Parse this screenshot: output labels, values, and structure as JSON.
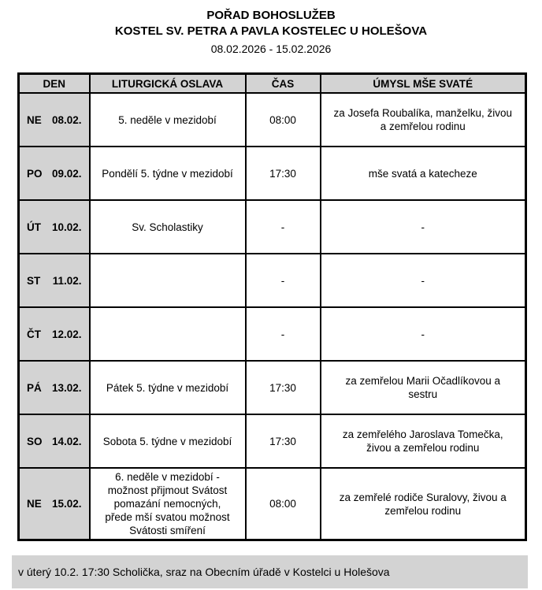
{
  "header": {
    "title": "POŘAD BOHOSLUŽEB",
    "subtitle": "KOSTEL SV. PETRA A PAVLA KOSTELEC U HOLEŠOVA",
    "date_range": "08.02.2026 - 15.02.2026"
  },
  "table": {
    "columns": [
      "DEN",
      "LITURGICKÁ OSLAVA",
      "ČAS",
      "ÚMYSL MŠE SVATÉ"
    ],
    "rows": [
      {
        "day": "NE",
        "date": "08.02.",
        "celebration": "5. neděle v mezidobí",
        "time": "08:00",
        "intention": "za Josefa Roubalíka, manželku, živou a zemřelou rodinu"
      },
      {
        "day": "PO",
        "date": "09.02.",
        "celebration": "Pondělí 5. týdne v mezidobí",
        "time": "17:30",
        "intention": "mše svatá a katecheze"
      },
      {
        "day": "ÚT",
        "date": "10.02.",
        "celebration": "Sv. Scholastiky",
        "time": "-",
        "intention": "-"
      },
      {
        "day": "ST",
        "date": "11.02.",
        "celebration": "",
        "time": "-",
        "intention": "-"
      },
      {
        "day": "ČT",
        "date": "12.02.",
        "celebration": "",
        "time": "-",
        "intention": "-"
      },
      {
        "day": "PÁ",
        "date": "13.02.",
        "celebration": "Pátek 5. týdne v mezidobí",
        "time": "17:30",
        "intention": "za zemřelou Marii Očadlíkovou a sestru"
      },
      {
        "day": "SO",
        "date": "14.02.",
        "celebration": "Sobota 5. týdne v mezidobí",
        "time": "17:30",
        "intention": "za zemřelého Jaroslava Tomečka, živou a zemřelou rodinu"
      },
      {
        "day": "NE",
        "date": "15.02.",
        "celebration": "6. neděle v mezidobí - možnost přijmout Svátost pomazání nemocných, přede mší svatou možnost Svátosti smíření",
        "time": "08:00",
        "intention": "za zemřelé rodiče Suralovy, živou a zemřelou rodinu"
      }
    ]
  },
  "footer": {
    "note": "v úterý 10.2. 17:30 Scholička, sraz na Obecním úřadě v Kostelci u Holešova"
  },
  "colors": {
    "cell_gray": "#d3d3d3",
    "border": "#000000",
    "background": "#ffffff",
    "text": "#000000"
  }
}
